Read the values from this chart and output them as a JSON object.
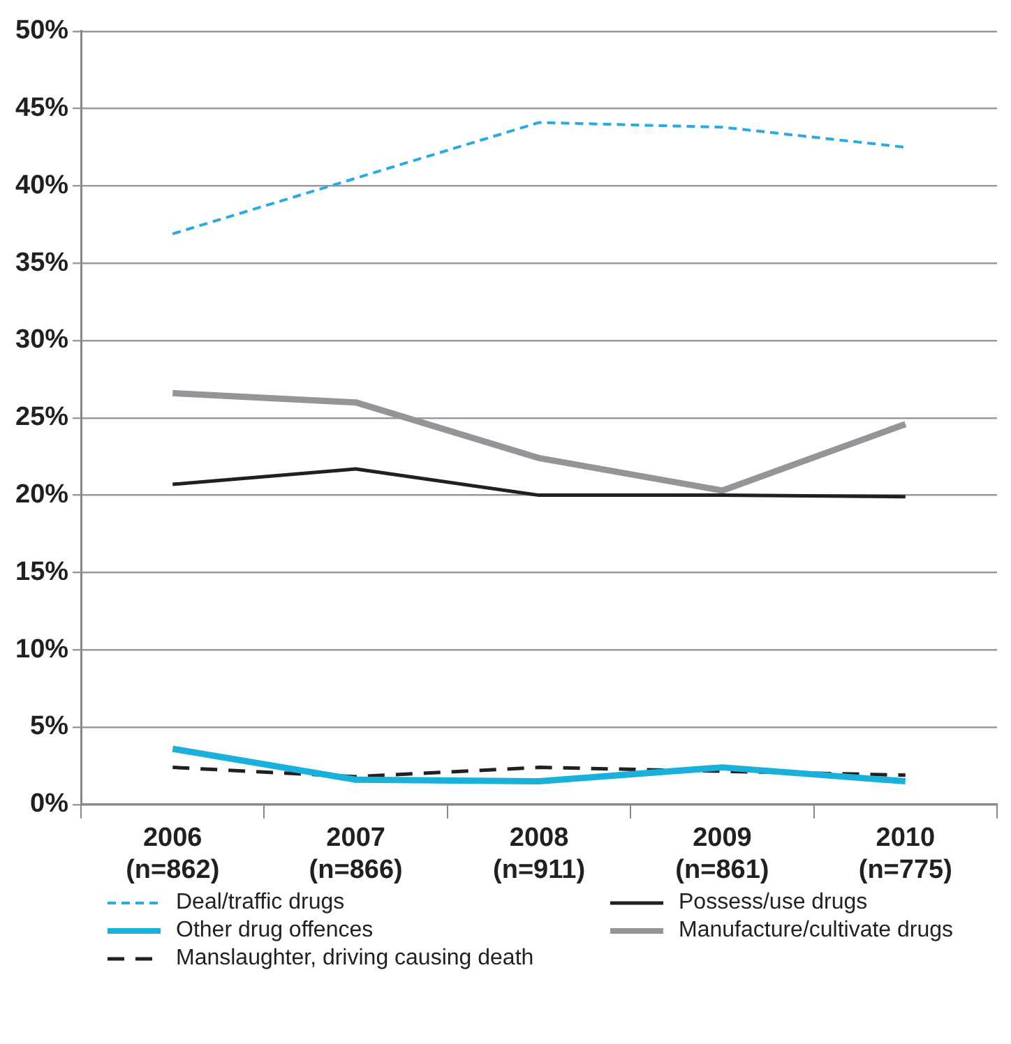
{
  "chart_data": {
    "type": "line",
    "categories": [
      "2006 (n=862)",
      "2007 (n=866)",
      "2008 (n=911)",
      "2009 (n=861)",
      "2010 (n=775)"
    ],
    "series": [
      {
        "name": "Deal/traffic drugs",
        "color": "#29aae1",
        "line_style": "dashed",
        "values": [
          36.9,
          40.5,
          44.1,
          43.8,
          42.5
        ]
      },
      {
        "name": "Possess/use drugs",
        "color": "#231f20",
        "line_style": "solid",
        "values": [
          20.7,
          21.7,
          20.0,
          20.0,
          19.9
        ]
      },
      {
        "name": "Other drug offences",
        "color": "#1ab0dc",
        "line_style": "solid",
        "values": [
          3.6,
          1.6,
          1.5,
          2.4,
          1.5
        ]
      },
      {
        "name": "Manufacture/cultivate drugs",
        "color": "#939598",
        "line_style": "solid",
        "values": [
          26.6,
          26.0,
          22.4,
          20.3,
          24.6
        ]
      },
      {
        "name": "Manslaughter, driving causing death",
        "color": "#231f20",
        "line_style": "dashed",
        "values": [
          2.4,
          1.8,
          2.4,
          null,
          1.9
        ]
      }
    ],
    "ylim": [
      0,
      50
    ],
    "yticks": [
      {
        "value": 0,
        "label": "0%"
      },
      {
        "value": 5,
        "label": "5%"
      },
      {
        "value": 10,
        "label": "10%"
      },
      {
        "value": 15,
        "label": "15%"
      },
      {
        "value": 20,
        "label": "20%"
      },
      {
        "value": 25,
        "label": "25%"
      },
      {
        "value": 30,
        "label": "30%"
      },
      {
        "value": 35,
        "label": "35%"
      },
      {
        "value": 40,
        "label": "40%"
      },
      {
        "value": 45,
        "label": "45%"
      },
      {
        "value": 50,
        "label": "50%"
      }
    ],
    "grid": "y",
    "legend": "bottom",
    "marker": "none"
  }
}
